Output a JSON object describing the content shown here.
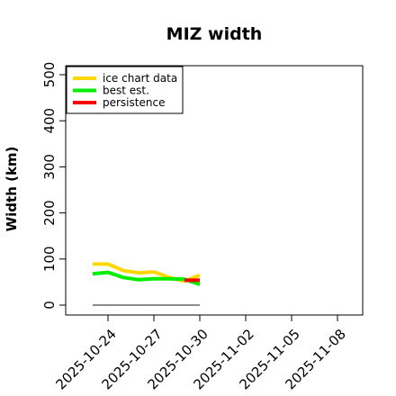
{
  "chart_data": {
    "type": "line",
    "title": "MIZ width",
    "xlabel": "",
    "ylabel": "Width (km)",
    "ylim": [
      0,
      500
    ],
    "yticks": [
      0,
      100,
      200,
      300,
      400,
      500
    ],
    "xlim": [
      "2025-10-23",
      "2025-11-09"
    ],
    "xtick_labels": [
      "2025-10-24",
      "2025-10-27",
      "2025-10-30",
      "2025-11-02",
      "2025-11-05",
      "2025-11-08"
    ],
    "legend_position": "top-left",
    "series": [
      {
        "name": "ice chart data",
        "color": "#FFD700",
        "x": [
          "2025-10-23",
          "2025-10-24",
          "2025-10-25",
          "2025-10-26",
          "2025-10-27",
          "2025-10-28",
          "2025-10-29",
          "2025-10-30"
        ],
        "values": [
          89,
          89,
          75,
          70,
          72,
          60,
          52,
          65
        ]
      },
      {
        "name": "best est.",
        "color": "#00EE00",
        "x": [
          "2025-10-23",
          "2025-10-24",
          "2025-10-25",
          "2025-10-26",
          "2025-10-27",
          "2025-10-28",
          "2025-10-29",
          "2025-10-30"
        ],
        "values": [
          68,
          71,
          60,
          55,
          57,
          57,
          56,
          45
        ]
      },
      {
        "name": "persistence",
        "color": "#FF0000",
        "x": [
          "2025-10-29",
          "2025-10-30"
        ],
        "values": [
          54,
          54
        ]
      },
      {
        "color": "#666666",
        "x": [
          "2025-10-23",
          "2025-10-30"
        ],
        "values": [
          0,
          0
        ]
      }
    ]
  }
}
